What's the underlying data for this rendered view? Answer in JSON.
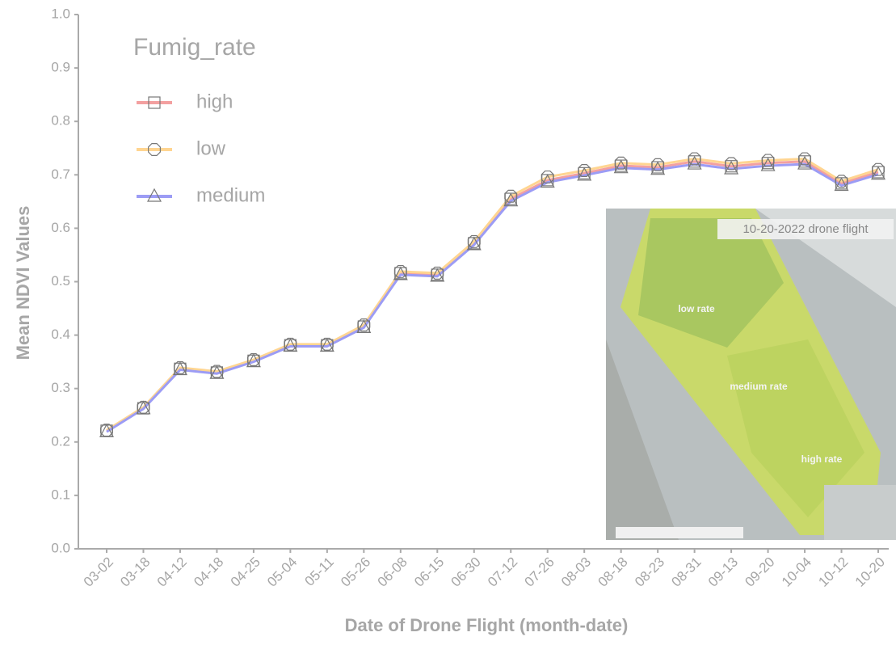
{
  "chart_data": {
    "type": "line",
    "x_label": "Date of Drone Flight (month-date)",
    "y_label": "Mean NDVI Values",
    "legend_title": "Fumig_rate",
    "legend": "top-left",
    "categories": [
      "03-02",
      "03-18",
      "04-12",
      "04-18",
      "04-25",
      "05-04",
      "05-11",
      "05-26",
      "06-08",
      "06-15",
      "06-30",
      "07-12",
      "07-26",
      "08-03",
      "08-18",
      "08-23",
      "08-31",
      "09-13",
      "09-20",
      "10-04",
      "10-12",
      "10-20"
    ],
    "series": [
      {
        "name": "high",
        "color": "#f3a0a0",
        "marker": "square",
        "values": [
          0.221,
          0.263,
          0.337,
          0.33,
          0.352,
          0.381,
          0.381,
          0.416,
          0.516,
          0.513,
          0.572,
          0.655,
          0.69,
          0.703,
          0.717,
          0.714,
          0.725,
          0.716,
          0.722,
          0.725,
          0.684,
          0.705
        ]
      },
      {
        "name": "low",
        "color": "#ffd591",
        "marker": "octagon",
        "values": [
          0.222,
          0.265,
          0.339,
          0.332,
          0.354,
          0.383,
          0.383,
          0.419,
          0.519,
          0.516,
          0.575,
          0.66,
          0.696,
          0.708,
          0.722,
          0.719,
          0.73,
          0.721,
          0.727,
          0.73,
          0.688,
          0.71
        ]
      },
      {
        "name": "medium",
        "color": "#9c9cf5",
        "marker": "triangle",
        "values": [
          0.219,
          0.262,
          0.335,
          0.328,
          0.35,
          0.379,
          0.379,
          0.414,
          0.513,
          0.51,
          0.569,
          0.651,
          0.686,
          0.699,
          0.713,
          0.71,
          0.72,
          0.711,
          0.717,
          0.72,
          0.68,
          0.701
        ]
      }
    ],
    "ylim": [
      0,
      1
    ],
    "yticks": [
      {
        "value": 0,
        "label": "0.0"
      },
      0.1,
      0.2,
      0.3,
      0.4,
      0.5,
      0.6,
      0.7,
      0.8,
      0.9,
      {
        "value": 1,
        "label": "1.0"
      }
    ],
    "grid": false
  },
  "inset": {
    "title": "10-20-2022 drone flight",
    "labels": [
      "low rate",
      "medium rate",
      "high rate"
    ]
  }
}
